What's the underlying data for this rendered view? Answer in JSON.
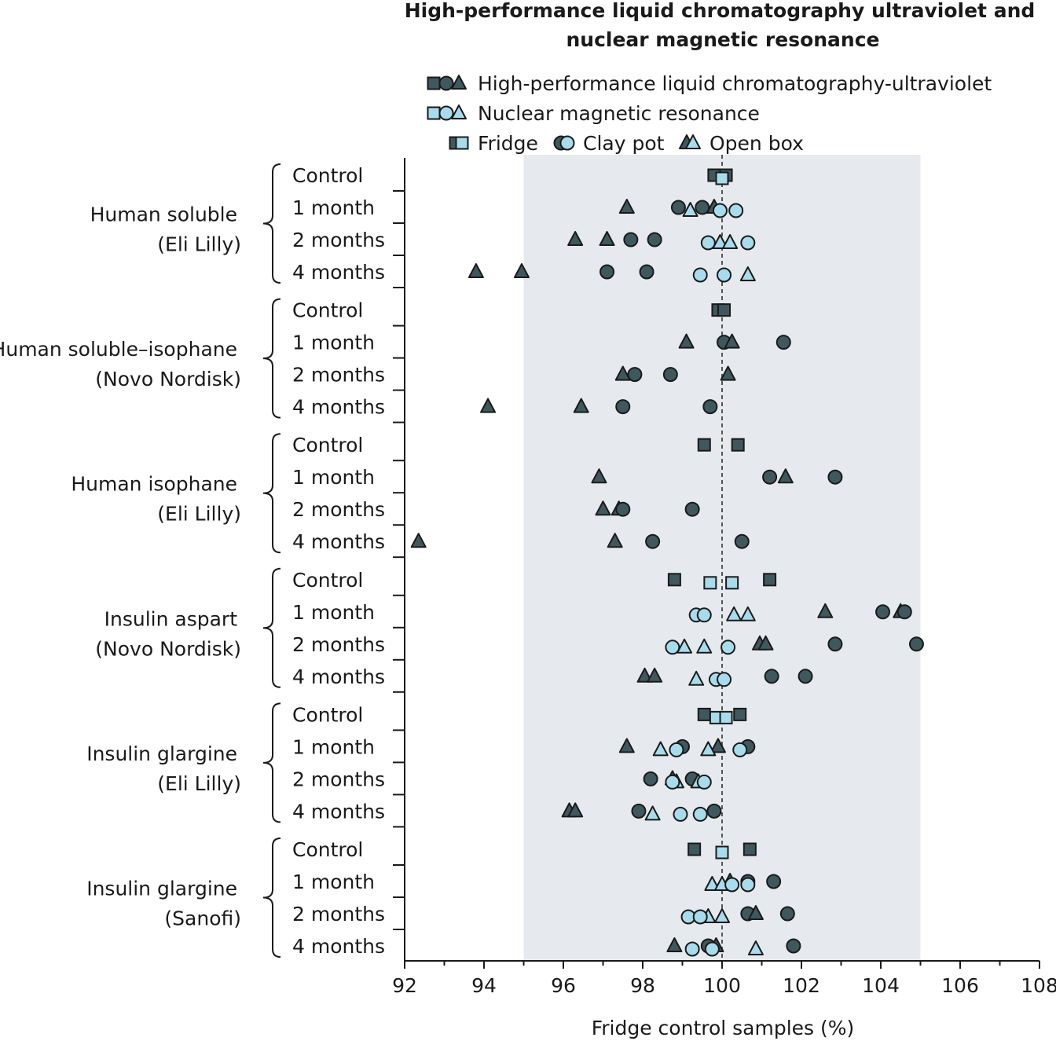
{
  "chart_data": {
    "type": "scatter",
    "title": "High-performance liquid chromatography ultraviolet and nuclear magnetic resonance",
    "xlabel": "Fridge control samples (%)",
    "ylabel": "",
    "xlim": [
      92,
      108
    ],
    "xticks": [
      "92",
      "94",
      "96",
      "98",
      "100",
      "102",
      "104",
      "106",
      "108"
    ],
    "shaded_range": [
      95,
      105
    ],
    "reference_line": 100,
    "legend": {
      "methods": [
        {
          "key": "hplc",
          "label": "High-performance liquid chromatography-ultraviolet",
          "color": "#3f585e"
        },
        {
          "key": "nmr",
          "label": "Nuclear magnetic resonance",
          "color": "#a8dcec"
        }
      ],
      "storage": [
        {
          "key": "fridge",
          "label": "Fridge",
          "shape": "square"
        },
        {
          "key": "clay",
          "label": "Clay pot",
          "shape": "circle"
        },
        {
          "key": "open",
          "label": "Open box",
          "shape": "triangle"
        }
      ]
    },
    "row_labels": [
      "Control",
      "1 month",
      "2 months",
      "4 months"
    ],
    "groups": [
      {
        "name": "Human soluble",
        "maker": "(Eli Lilly)",
        "rows": [
          [
            {
              "m": "hplc",
              "s": "fridge",
              "x": 99.8
            },
            {
              "m": "hplc",
              "s": "fridge",
              "x": 100.1
            },
            {
              "m": "nmr",
              "s": "fridge",
              "x": 100
            }
          ],
          [
            {
              "m": "hplc",
              "s": "open",
              "x": 97.6
            },
            {
              "m": "hplc",
              "s": "clay",
              "x": 98.9
            },
            {
              "m": "hplc",
              "s": "clay",
              "x": 99.5
            },
            {
              "m": "hplc",
              "s": "open",
              "x": 99.8
            },
            {
              "m": "nmr",
              "s": "open",
              "x": 99.2
            },
            {
              "m": "nmr",
              "s": "clay",
              "x": 99.95
            },
            {
              "m": "nmr",
              "s": "clay",
              "x": 100.35
            }
          ],
          [
            {
              "m": "hplc",
              "s": "open",
              "x": 96.3
            },
            {
              "m": "hplc",
              "s": "open",
              "x": 97.1
            },
            {
              "m": "hplc",
              "s": "clay",
              "x": 97.7
            },
            {
              "m": "hplc",
              "s": "clay",
              "x": 98.3
            },
            {
              "m": "nmr",
              "s": "clay",
              "x": 99.65
            },
            {
              "m": "nmr",
              "s": "open",
              "x": 99.95
            },
            {
              "m": "nmr",
              "s": "open",
              "x": 100.2
            },
            {
              "m": "nmr",
              "s": "clay",
              "x": 100.65
            }
          ],
          [
            {
              "m": "hplc",
              "s": "open",
              "x": 93.8
            },
            {
              "m": "hplc",
              "s": "open",
              "x": 94.95
            },
            {
              "m": "hplc",
              "s": "clay",
              "x": 97.1
            },
            {
              "m": "hplc",
              "s": "clay",
              "x": 98.1
            },
            {
              "m": "nmr",
              "s": "clay",
              "x": 99.45
            },
            {
              "m": "nmr",
              "s": "clay",
              "x": 100.05
            },
            {
              "m": "nmr",
              "s": "open",
              "x": 100.65
            }
          ]
        ]
      },
      {
        "name": "Human soluble–isophane",
        "maker": "(Novo Nordisk)",
        "rows": [
          [
            {
              "m": "hplc",
              "s": "fridge",
              "x": 99.9
            },
            {
              "m": "hplc",
              "s": "fridge",
              "x": 100.05
            }
          ],
          [
            {
              "m": "hplc",
              "s": "open",
              "x": 99.1
            },
            {
              "m": "hplc",
              "s": "clay",
              "x": 100.05
            },
            {
              "m": "hplc",
              "s": "open",
              "x": 100.25
            },
            {
              "m": "hplc",
              "s": "clay",
              "x": 101.55
            }
          ],
          [
            {
              "m": "hplc",
              "s": "open",
              "x": 97.5
            },
            {
              "m": "hplc",
              "s": "clay",
              "x": 97.8
            },
            {
              "m": "hplc",
              "s": "clay",
              "x": 98.7
            },
            {
              "m": "hplc",
              "s": "open",
              "x": 100.15
            }
          ],
          [
            {
              "m": "hplc",
              "s": "open",
              "x": 94.1
            },
            {
              "m": "hplc",
              "s": "open",
              "x": 96.45
            },
            {
              "m": "hplc",
              "s": "clay",
              "x": 97.5
            },
            {
              "m": "hplc",
              "s": "clay",
              "x": 99.7
            }
          ]
        ]
      },
      {
        "name": "Human isophane",
        "maker": "(Eli Lilly)",
        "rows": [
          [
            {
              "m": "hplc",
              "s": "fridge",
              "x": 99.55
            },
            {
              "m": "hplc",
              "s": "fridge",
              "x": 100.4
            }
          ],
          [
            {
              "m": "hplc",
              "s": "open",
              "x": 96.9
            },
            {
              "m": "hplc",
              "s": "clay",
              "x": 101.2
            },
            {
              "m": "hplc",
              "s": "open",
              "x": 101.6
            },
            {
              "m": "hplc",
              "s": "clay",
              "x": 102.85
            }
          ],
          [
            {
              "m": "hplc",
              "s": "open",
              "x": 97.0
            },
            {
              "m": "hplc",
              "s": "open",
              "x": 97.4
            },
            {
              "m": "hplc",
              "s": "clay",
              "x": 97.5
            },
            {
              "m": "hplc",
              "s": "clay",
              "x": 99.25
            }
          ],
          [
            {
              "m": "hplc",
              "s": "open",
              "x": 92.35
            },
            {
              "m": "hplc",
              "s": "open",
              "x": 97.3
            },
            {
              "m": "hplc",
              "s": "clay",
              "x": 98.25
            },
            {
              "m": "hplc",
              "s": "clay",
              "x": 100.5
            }
          ]
        ]
      },
      {
        "name": "Insulin aspart",
        "maker": "(Novo Nordisk)",
        "rows": [
          [
            {
              "m": "hplc",
              "s": "fridge",
              "x": 98.8
            },
            {
              "m": "hplc",
              "s": "fridge",
              "x": 101.2
            },
            {
              "m": "nmr",
              "s": "fridge",
              "x": 99.7
            },
            {
              "m": "nmr",
              "s": "fridge",
              "x": 100.25
            }
          ],
          [
            {
              "m": "hplc",
              "s": "open",
              "x": 102.6
            },
            {
              "m": "hplc",
              "s": "clay",
              "x": 104.05
            },
            {
              "m": "hplc",
              "s": "open",
              "x": 104.5
            },
            {
              "m": "hplc",
              "s": "clay",
              "x": 104.6
            },
            {
              "m": "nmr",
              "s": "clay",
              "x": 99.35
            },
            {
              "m": "nmr",
              "s": "clay",
              "x": 99.55
            },
            {
              "m": "nmr",
              "s": "open",
              "x": 100.3
            },
            {
              "m": "nmr",
              "s": "open",
              "x": 100.65
            }
          ],
          [
            {
              "m": "hplc",
              "s": "open",
              "x": 100.95
            },
            {
              "m": "hplc",
              "s": "open",
              "x": 101.1
            },
            {
              "m": "hplc",
              "s": "clay",
              "x": 102.85
            },
            {
              "m": "hplc",
              "s": "clay",
              "x": 104.9
            },
            {
              "m": "nmr",
              "s": "clay",
              "x": 98.75
            },
            {
              "m": "nmr",
              "s": "open",
              "x": 99.05
            },
            {
              "m": "nmr",
              "s": "open",
              "x": 99.55
            },
            {
              "m": "nmr",
              "s": "clay",
              "x": 100.15
            }
          ],
          [
            {
              "m": "hplc",
              "s": "open",
              "x": 98.05
            },
            {
              "m": "hplc",
              "s": "open",
              "x": 98.3
            },
            {
              "m": "hplc",
              "s": "clay",
              "x": 101.25
            },
            {
              "m": "hplc",
              "s": "clay",
              "x": 102.1
            },
            {
              "m": "nmr",
              "s": "open",
              "x": 99.35
            },
            {
              "m": "nmr",
              "s": "clay",
              "x": 99.85
            },
            {
              "m": "nmr",
              "s": "clay",
              "x": 100.05
            }
          ]
        ]
      },
      {
        "name": "Insulin glargine",
        "maker": "(Eli Lilly)",
        "rows": [
          [
            {
              "m": "hplc",
              "s": "fridge",
              "x": 99.55
            },
            {
              "m": "hplc",
              "s": "fridge",
              "x": 100.45
            },
            {
              "m": "nmr",
              "s": "fridge",
              "x": 99.85
            },
            {
              "m": "nmr",
              "s": "fridge",
              "x": 100.1
            }
          ],
          [
            {
              "m": "hplc",
              "s": "open",
              "x": 97.6
            },
            {
              "m": "hplc",
              "s": "clay",
              "x": 99.0
            },
            {
              "m": "hplc",
              "s": "open",
              "x": 99.9
            },
            {
              "m": "hplc",
              "s": "clay",
              "x": 100.65
            },
            {
              "m": "nmr",
              "s": "open",
              "x": 98.45
            },
            {
              "m": "nmr",
              "s": "clay",
              "x": 98.85
            },
            {
              "m": "nmr",
              "s": "open",
              "x": 99.65
            },
            {
              "m": "nmr",
              "s": "clay",
              "x": 100.45
            }
          ],
          [
            {
              "m": "hplc",
              "s": "clay",
              "x": 98.2
            },
            {
              "m": "hplc",
              "s": "open",
              "x": 98.75
            },
            {
              "m": "hplc",
              "s": "clay",
              "x": 99.25
            },
            {
              "m": "nmr",
              "s": "open",
              "x": 98.85
            },
            {
              "m": "nmr",
              "s": "clay",
              "x": 98.75
            },
            {
              "m": "nmr",
              "s": "open",
              "x": 99.4
            },
            {
              "m": "nmr",
              "s": "clay",
              "x": 99.55
            }
          ],
          [
            {
              "m": "hplc",
              "s": "open",
              "x": 96.15
            },
            {
              "m": "hplc",
              "s": "open",
              "x": 96.3
            },
            {
              "m": "hplc",
              "s": "clay",
              "x": 97.9
            },
            {
              "m": "hplc",
              "s": "clay",
              "x": 99.8
            },
            {
              "m": "nmr",
              "s": "open",
              "x": 98.25
            },
            {
              "m": "nmr",
              "s": "clay",
              "x": 98.95
            },
            {
              "m": "nmr",
              "s": "clay",
              "x": 99.45
            }
          ]
        ]
      },
      {
        "name": "Insulin glargine",
        "maker": "(Sanofi)",
        "rows": [
          [
            {
              "m": "hplc",
              "s": "fridge",
              "x": 99.3
            },
            {
              "m": "hplc",
              "s": "fridge",
              "x": 100.7
            },
            {
              "m": "nmr",
              "s": "fridge",
              "x": 100
            }
          ],
          [
            {
              "m": "hplc",
              "s": "open",
              "x": 100.2
            },
            {
              "m": "hplc",
              "s": "clay",
              "x": 100.65
            },
            {
              "m": "hplc",
              "s": "clay",
              "x": 101.3
            },
            {
              "m": "nmr",
              "s": "open",
              "x": 99.75
            },
            {
              "m": "nmr",
              "s": "open",
              "x": 100.0
            },
            {
              "m": "nmr",
              "s": "clay",
              "x": 100.25
            },
            {
              "m": "nmr",
              "s": "clay",
              "x": 100.65
            }
          ],
          [
            {
              "m": "hplc",
              "s": "clay",
              "x": 100.65
            },
            {
              "m": "hplc",
              "s": "open",
              "x": 100.85
            },
            {
              "m": "hplc",
              "s": "clay",
              "x": 101.65
            },
            {
              "m": "nmr",
              "s": "clay",
              "x": 99.15
            },
            {
              "m": "nmr",
              "s": "open",
              "x": 99.65
            },
            {
              "m": "nmr",
              "s": "clay",
              "x": 99.45
            },
            {
              "m": "nmr",
              "s": "open",
              "x": 100.0
            }
          ],
          [
            {
              "m": "hplc",
              "s": "open",
              "x": 98.8
            },
            {
              "m": "hplc",
              "s": "clay",
              "x": 99.65
            },
            {
              "m": "hplc",
              "s": "open",
              "x": 99.85
            },
            {
              "m": "hplc",
              "s": "clay",
              "x": 101.8
            },
            {
              "m": "nmr",
              "s": "clay",
              "x": 99.25
            },
            {
              "m": "nmr",
              "s": "clay",
              "x": 99.75
            },
            {
              "m": "nmr",
              "s": "open",
              "x": 100.85
            }
          ]
        ]
      }
    ]
  }
}
